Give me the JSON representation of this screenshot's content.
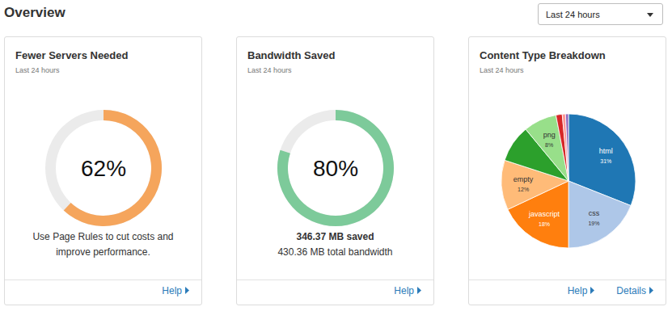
{
  "header": {
    "title": "Overview",
    "period": "Last 24 hours"
  },
  "chart_data": [
    {
      "type": "gauge",
      "title": "Fewer Servers Needed",
      "subtitle": "Last 24 hours",
      "values": [
        62
      ],
      "value_labels": [
        "62%"
      ],
      "ylim": [
        0,
        100
      ],
      "color": "#f5a55c",
      "data_labels": true,
      "annotations": [
        "Use Page Rules to cut costs and improve performance."
      ],
      "links": [
        "Help"
      ]
    },
    {
      "type": "gauge",
      "title": "Bandwidth Saved",
      "subtitle": "Last 24 hours",
      "values": [
        80
      ],
      "value_labels": [
        "80%"
      ],
      "ylim": [
        0,
        100
      ],
      "color": "#7dca9a",
      "data_labels": true,
      "annotations": [
        "346.37 MB saved",
        "430.36 MB total bandwidth"
      ],
      "links": [
        "Help"
      ]
    },
    {
      "type": "pie",
      "title": "Content Type Breakdown",
      "subtitle": "Last 24 hours",
      "categories": [
        "html",
        "css",
        "javascript",
        "empty",
        null,
        "png",
        null,
        null,
        null
      ],
      "values": [
        31,
        19,
        18,
        12,
        9,
        8,
        1.5,
        0.8,
        0.7
      ],
      "value_labels": [
        "31%",
        "19%",
        "18%",
        "12%",
        null,
        "8%",
        null,
        null,
        null
      ],
      "colors": [
        "#1f77b4",
        "#aec7e8",
        "#ff7f0e",
        "#ffbb78",
        "#2ca02c",
        "#98df8a",
        "#d62728",
        "#ff9896",
        "#9467bd"
      ],
      "data_labels": true,
      "links": [
        "Help",
        "Details"
      ]
    }
  ]
}
